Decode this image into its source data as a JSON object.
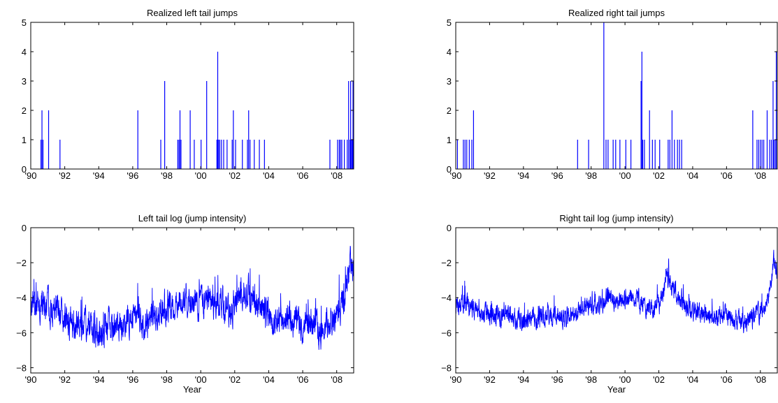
{
  "colors": {
    "series": "#0000ff",
    "axes": "#000000",
    "background": "#ffffff"
  },
  "chart_data": [
    {
      "type": "bar",
      "title": "Realized left tail jumps",
      "xlabel": "",
      "ylabel": "",
      "xlim": [
        1990,
        2009
      ],
      "ylim": [
        0,
        5
      ],
      "grid": false,
      "xticks": [
        1990,
        1992,
        1994,
        1996,
        1998,
        2000,
        2002,
        2004,
        2006,
        2008
      ],
      "xtick_labels": [
        "'90",
        "'92",
        "'94",
        "'96",
        "'98",
        "'00",
        "'02",
        "'04",
        "'06",
        "'08"
      ],
      "yticks": [
        0,
        1,
        2,
        3,
        4,
        5
      ],
      "ytick_labels": [
        "0",
        "1",
        "2",
        "3",
        "4",
        "5"
      ],
      "x": [
        1990.6,
        1990.66,
        1990.72,
        1991.05,
        1991.72,
        1996.3,
        1997.65,
        1997.88,
        1998.65,
        1998.72,
        1998.78,
        1998.84,
        1999.38,
        1999.62,
        2000.02,
        2000.35,
        2000.95,
        2001.0,
        2001.05,
        2001.12,
        2001.22,
        2001.35,
        2001.55,
        2001.85,
        2001.92,
        2002.05,
        2002.45,
        2002.75,
        2002.82,
        2002.9,
        2003.15,
        2003.45,
        2003.75,
        2007.6,
        2008.05,
        2008.15,
        2008.22,
        2008.3,
        2008.45,
        2008.62,
        2008.7,
        2008.78,
        2008.82,
        2008.88,
        2008.92,
        2008.96
      ],
      "values": [
        1,
        2,
        1,
        2,
        1,
        2,
        1,
        3,
        1,
        1,
        2,
        1,
        2,
        1,
        1,
        3,
        1,
        4,
        1,
        1,
        1,
        1,
        1,
        1,
        2,
        1,
        1,
        1,
        2,
        1,
        1,
        1,
        1,
        1,
        1,
        1,
        1,
        1,
        1,
        1,
        3,
        1,
        3,
        1,
        1,
        3
      ]
    },
    {
      "type": "bar",
      "title": "Realized right tail jumps",
      "xlabel": "",
      "ylabel": "",
      "xlim": [
        1990,
        2009
      ],
      "ylim": [
        0,
        5
      ],
      "grid": false,
      "xticks": [
        1990,
        1992,
        1994,
        1996,
        1998,
        2000,
        2002,
        2004,
        2006,
        2008
      ],
      "xtick_labels": [
        "'90",
        "'92",
        "'94",
        "'96",
        "'98",
        "'00",
        "'02",
        "'04",
        "'06",
        "'08"
      ],
      "yticks": [
        0,
        1,
        2,
        3,
        4,
        5
      ],
      "ytick_labels": [
        "0",
        "1",
        "2",
        "3",
        "4",
        "5"
      ],
      "x": [
        1990.1,
        1990.45,
        1990.55,
        1990.65,
        1990.8,
        1990.95,
        1991.05,
        1997.2,
        1997.85,
        1998.75,
        1998.88,
        1999.0,
        1999.3,
        1999.45,
        1999.7,
        2000.05,
        2000.35,
        2000.95,
        2001.0,
        2001.05,
        2001.15,
        2001.45,
        2001.62,
        2001.78,
        2002.05,
        2002.55,
        2002.65,
        2002.78,
        2002.92,
        2003.1,
        2003.22,
        2003.35,
        2007.55,
        2007.8,
        2007.9,
        2008.0,
        2008.1,
        2008.2,
        2008.4,
        2008.55,
        2008.65,
        2008.75,
        2008.8,
        2008.88,
        2008.94
      ],
      "values": [
        1,
        1,
        1,
        1,
        1,
        1,
        2,
        1,
        1,
        5,
        1,
        1,
        1,
        1,
        1,
        1,
        1,
        3,
        4,
        1,
        1,
        2,
        1,
        1,
        1,
        1,
        1,
        2,
        1,
        1,
        1,
        1,
        2,
        1,
        1,
        1,
        1,
        1,
        2,
        1,
        1,
        3,
        1,
        1,
        4
      ]
    },
    {
      "type": "line",
      "title": "Left tail log (jump intensity)",
      "xlabel": "Year",
      "ylabel": "",
      "xlim": [
        1990,
        2009
      ],
      "ylim": [
        -8.3,
        0
      ],
      "grid": false,
      "xticks": [
        1990,
        1992,
        1994,
        1996,
        1998,
        2000,
        2002,
        2004,
        2006,
        2008
      ],
      "xtick_labels": [
        "'90",
        "'92",
        "'94",
        "'96",
        "'98",
        "'00",
        "'02",
        "'04",
        "'06",
        "'08"
      ],
      "yticks": [
        0,
        -2,
        -4,
        -6,
        -8
      ],
      "ytick_labels": [
        "0",
        "−2",
        "−4",
        "−6",
        "−8"
      ],
      "x": [
        1990.0,
        1990.5,
        1991.0,
        1991.5,
        1992.0,
        1992.5,
        1993.0,
        1993.5,
        1994.0,
        1994.5,
        1995.0,
        1995.5,
        1996.0,
        1996.5,
        1997.0,
        1997.5,
        1998.0,
        1998.5,
        1999.0,
        1999.5,
        2000.0,
        2000.5,
        2001.0,
        2001.5,
        2002.0,
        2002.5,
        2003.0,
        2003.5,
        2004.0,
        2004.5,
        2005.0,
        2005.5,
        2006.0,
        2006.5,
        2007.0,
        2007.5,
        2008.0,
        2008.5,
        2008.8,
        2009.0
      ],
      "values": [
        -4.5,
        -4.3,
        -4.5,
        -4.9,
        -5.3,
        -5.6,
        -5.5,
        -5.8,
        -5.9,
        -5.6,
        -5.5,
        -5.4,
        -5.3,
        -5.5,
        -5.3,
        -5.0,
        -4.6,
        -4.4,
        -4.0,
        -4.4,
        -4.3,
        -4.0,
        -4.2,
        -4.8,
        -4.6,
        -3.5,
        -3.9,
        -4.5,
        -4.9,
        -5.3,
        -5.4,
        -5.2,
        -5.6,
        -5.4,
        -5.9,
        -5.7,
        -5.0,
        -4.0,
        -2.0,
        -2.5
      ],
      "noise": 0.7
    },
    {
      "type": "line",
      "title": "Right tail log (jump intensity)",
      "xlabel": "Year",
      "ylabel": "",
      "xlim": [
        1990,
        2009
      ],
      "ylim": [
        -8.3,
        0
      ],
      "grid": false,
      "xticks": [
        1990,
        1992,
        1994,
        1996,
        1998,
        2000,
        2002,
        2004,
        2006,
        2008
      ],
      "xtick_labels": [
        "'90",
        "'92",
        "'94",
        "'96",
        "'98",
        "'00",
        "'02",
        "'04",
        "'06",
        "'08"
      ],
      "yticks": [
        0,
        -2,
        -4,
        -6,
        -8
      ],
      "ytick_labels": [
        "0",
        "−2",
        "−4",
        "−6",
        "−8"
      ],
      "x": [
        1990.0,
        1990.5,
        1991.0,
        1991.5,
        1992.0,
        1992.5,
        1993.0,
        1993.5,
        1994.0,
        1994.5,
        1995.0,
        1995.5,
        1996.0,
        1996.5,
        1997.0,
        1997.5,
        1998.0,
        1998.5,
        1999.0,
        1999.5,
        2000.0,
        2000.5,
        2001.0,
        2001.5,
        2002.0,
        2002.5,
        2003.0,
        2003.5,
        2004.0,
        2004.5,
        2005.0,
        2005.5,
        2006.0,
        2006.5,
        2007.0,
        2007.5,
        2008.0,
        2008.5,
        2008.8,
        2009.0
      ],
      "values": [
        -4.5,
        -4.3,
        -4.6,
        -4.9,
        -5.0,
        -5.1,
        -5.0,
        -5.2,
        -5.3,
        -5.2,
        -5.1,
        -5.1,
        -5.0,
        -5.1,
        -5.0,
        -4.6,
        -4.3,
        -4.5,
        -4.0,
        -4.3,
        -4.1,
        -4.0,
        -4.2,
        -4.6,
        -4.5,
        -3.0,
        -3.6,
        -4.5,
        -4.8,
        -4.9,
        -5.0,
        -5.0,
        -5.1,
        -5.1,
        -5.4,
        -5.2,
        -4.8,
        -4.0,
        -2.0,
        -2.5
      ],
      "noise": 0.45
    }
  ]
}
